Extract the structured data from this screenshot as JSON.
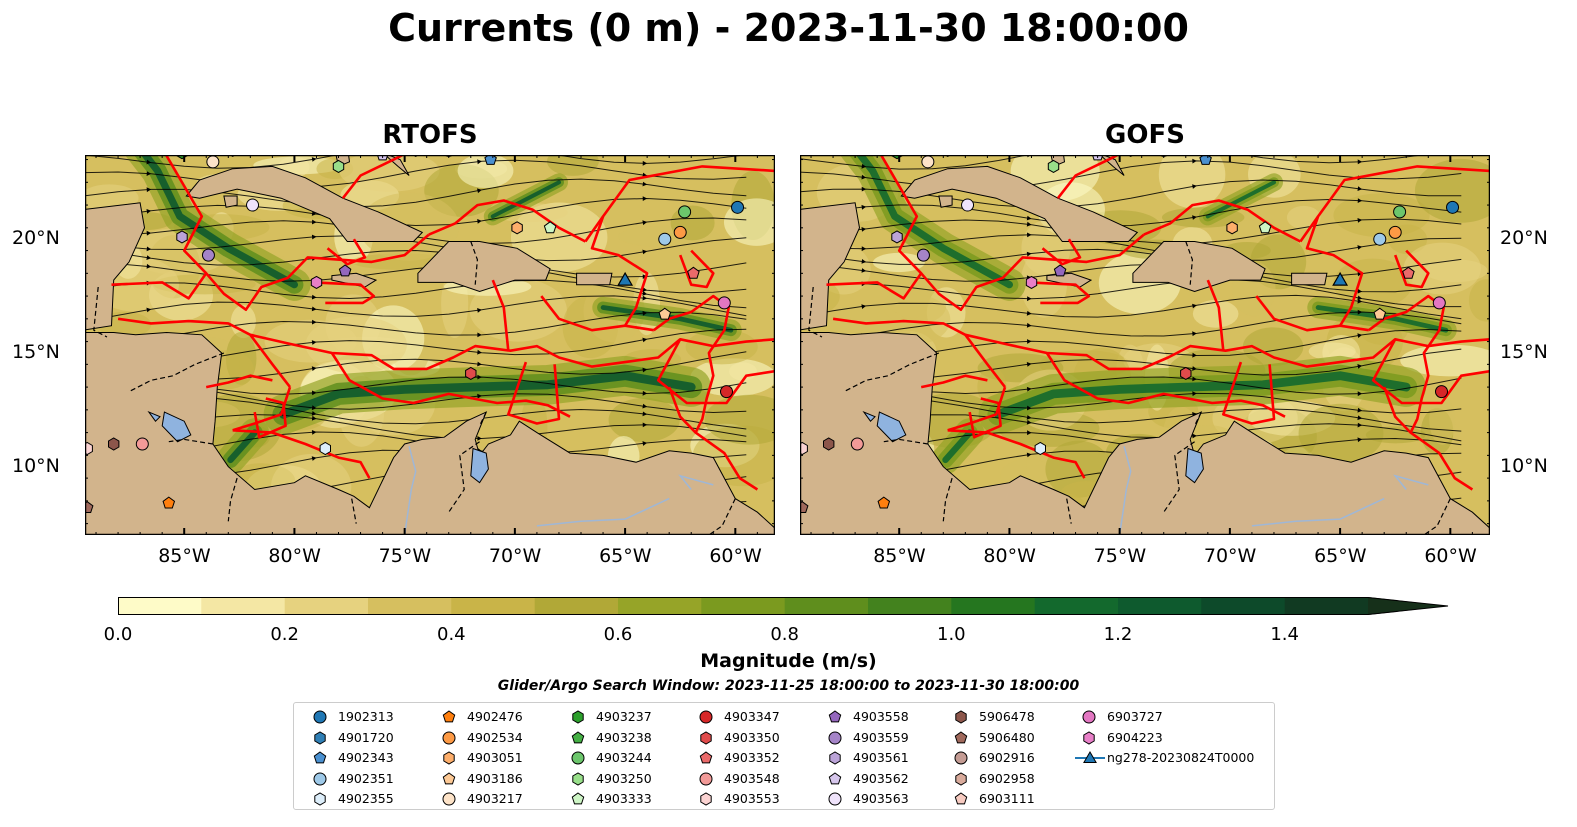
{
  "title": "Currents (0 m) - 2023-11-30 18:00:00",
  "panels": [
    {
      "title": "RTOFS",
      "max_band": "high"
    },
    {
      "title": "GOFS",
      "max_band": "medium"
    }
  ],
  "map": {
    "lon_range": [
      -89.5,
      -58.2
    ],
    "lat_range": [
      7.0,
      23.7
    ],
    "x_ticks": [
      "85°W",
      "80°W",
      "75°W",
      "70°W",
      "65°W",
      "60°W"
    ],
    "x_tick_values": [
      -85,
      -80,
      -75,
      -70,
      -65,
      -60
    ],
    "y_ticks": [
      "20°N",
      "15°N",
      "10°N"
    ],
    "y_tick_values": [
      20,
      15,
      10
    ],
    "land_color": "#d2b48c",
    "eez_color": "#ff0000",
    "lake_color": "#8fb3df"
  },
  "colorbar": {
    "label": "Magnitude (m/s)",
    "ticks": [
      "0.0",
      "0.2",
      "0.4",
      "0.6",
      "0.8",
      "1.0",
      "1.2",
      "1.4"
    ],
    "tick_values": [
      0.0,
      0.2,
      0.4,
      0.6,
      0.8,
      1.0,
      1.2,
      1.4
    ],
    "min": 0.0,
    "max": 1.5,
    "step": 0.1,
    "extend": "max",
    "colors": [
      "#fefbc8",
      "#f4e7a4",
      "#e6d27f",
      "#d6bf5f",
      "#c9b448",
      "#b1a837",
      "#96a428",
      "#7b9a1f",
      "#5f8e1d",
      "#43821e",
      "#25761f",
      "#13692d",
      "#0e5a2e",
      "#0d4a2a",
      "#113a22",
      "#16301a"
    ]
  },
  "search_window": "Glider/Argo Search Window: 2023-11-25 18:00:00 to 2023-11-30 18:00:00",
  "legend": [
    {
      "label": "1902313",
      "marker": "circle",
      "color": "#1f77b4"
    },
    {
      "label": "4901720",
      "marker": "hexagon",
      "color": "#2f7fb5"
    },
    {
      "label": "4902343",
      "marker": "pentagon",
      "color": "#4a90d0"
    },
    {
      "label": "4902351",
      "marker": "circle",
      "color": "#9ec9e8"
    },
    {
      "label": "4902355",
      "marker": "hexagon",
      "color": "#ddeefa"
    },
    {
      "label": "4902476",
      "marker": "pentagon",
      "color": "#ff7f0e"
    },
    {
      "label": "4902534",
      "marker": "circle",
      "color": "#fd9a45"
    },
    {
      "label": "4903051",
      "marker": "hexagon",
      "color": "#fdae6b"
    },
    {
      "label": "4903186",
      "marker": "pentagon",
      "color": "#fdc995"
    },
    {
      "label": "4903217",
      "marker": "circle",
      "color": "#fde3c8"
    },
    {
      "label": "4903237",
      "marker": "hexagon",
      "color": "#2ca02c"
    },
    {
      "label": "4903238",
      "marker": "pentagon",
      "color": "#45b045"
    },
    {
      "label": "4903244",
      "marker": "circle",
      "color": "#6cc66c"
    },
    {
      "label": "4903250",
      "marker": "hexagon",
      "color": "#98df8a"
    },
    {
      "label": "4903333",
      "marker": "pentagon",
      "color": "#cdf5c5"
    },
    {
      "label": "4903347",
      "marker": "circle",
      "color": "#d62728"
    },
    {
      "label": "4903350",
      "marker": "hexagon",
      "color": "#e04b4b"
    },
    {
      "label": "4903352",
      "marker": "pentagon",
      "color": "#ea6a6a"
    },
    {
      "label": "4903548",
      "marker": "circle",
      "color": "#f29a98"
    },
    {
      "label": "4903553",
      "marker": "hexagon",
      "color": "#fbd3d2"
    },
    {
      "label": "4903558",
      "marker": "pentagon",
      "color": "#9467bd"
    },
    {
      "label": "4903559",
      "marker": "circle",
      "color": "#a584c8"
    },
    {
      "label": "4903561",
      "marker": "hexagon",
      "color": "#bba3d8"
    },
    {
      "label": "4903562",
      "marker": "pentagon",
      "color": "#d6c6ec"
    },
    {
      "label": "4903563",
      "marker": "circle",
      "color": "#efe3fb"
    },
    {
      "label": "5906478",
      "marker": "hexagon",
      "color": "#8c564b"
    },
    {
      "label": "5906480",
      "marker": "pentagon",
      "color": "#a0695c"
    },
    {
      "label": "6902916",
      "marker": "circle",
      "color": "#c49c94"
    },
    {
      "label": "6902958",
      "marker": "hexagon",
      "color": "#d9ab9c"
    },
    {
      "label": "6903111",
      "marker": "pentagon",
      "color": "#f7cbc1"
    },
    {
      "label": "6903727",
      "marker": "circle",
      "color": "#e377c2"
    },
    {
      "label": "6904223",
      "marker": "hexagon",
      "color": "#e87fc8"
    },
    {
      "label": "ng278-20230824T0000",
      "marker": "triangle-line",
      "color": "#1f77b4"
    }
  ],
  "floats": [
    {
      "id": "1902313",
      "lon": -59.9,
      "lat": 21.4
    },
    {
      "id": "4901720",
      "lon": -82.8,
      "lat": 23.9
    },
    {
      "id": "4902343",
      "lon": -71.1,
      "lat": 23.5
    },
    {
      "id": "4902351",
      "lon": -63.2,
      "lat": 20.0
    },
    {
      "id": "4902355",
      "lon": -78.6,
      "lat": 10.8
    },
    {
      "id": "4902476",
      "lon": -85.7,
      "lat": 8.4
    },
    {
      "id": "4902534",
      "lon": -62.5,
      "lat": 20.3
    },
    {
      "id": "4903051",
      "lon": -69.9,
      "lat": 20.5
    },
    {
      "id": "4903186",
      "lon": -63.2,
      "lat": 16.7
    },
    {
      "id": "4903217",
      "lon": -83.7,
      "lat": 23.4
    },
    {
      "id": "4903237",
      "lon": -85.1,
      "lat": 23.8
    },
    {
      "id": "4903238",
      "lon": -86.5,
      "lat": 23.9
    },
    {
      "id": "4903244",
      "lon": -62.3,
      "lat": 21.2
    },
    {
      "id": "4903250",
      "lon": -78.0,
      "lat": 23.2
    },
    {
      "id": "4903333",
      "lon": -68.4,
      "lat": 20.5
    },
    {
      "id": "4903347",
      "lon": -60.4,
      "lat": 13.3
    },
    {
      "id": "4903350",
      "lon": -72.0,
      "lat": 14.1
    },
    {
      "id": "4903352",
      "lon": -61.9,
      "lat": 18.5
    },
    {
      "id": "4903548",
      "lon": -86.9,
      "lat": 11.0
    },
    {
      "id": "4903553",
      "lon": -89.4,
      "lat": 10.8
    },
    {
      "id": "4903558",
      "lon": -77.7,
      "lat": 18.6
    },
    {
      "id": "4903559",
      "lon": -83.9,
      "lat": 19.3
    },
    {
      "id": "4903561",
      "lon": -85.1,
      "lat": 20.1
    },
    {
      "id": "4903562",
      "lon": -76.0,
      "lat": 23.7
    },
    {
      "id": "4903563",
      "lon": -81.9,
      "lat": 21.5
    },
    {
      "id": "5906478",
      "lon": -88.2,
      "lat": 11.0
    },
    {
      "id": "5906480",
      "lon": -89.4,
      "lat": 8.2
    },
    {
      "id": "6902916",
      "lon": -73.0,
      "lat": 23.9
    },
    {
      "id": "6902958",
      "lon": -74.5,
      "lat": 23.9
    },
    {
      "id": "6903111",
      "lon": -66.5,
      "lat": 23.9
    },
    {
      "id": "6903727",
      "lon": -60.5,
      "lat": 17.2
    },
    {
      "id": "6904223",
      "lon": -79.0,
      "lat": 18.1
    }
  ],
  "glider": {
    "id": "ng278-20230824T0000",
    "lon": -65.0,
    "lat": 18.2
  }
}
